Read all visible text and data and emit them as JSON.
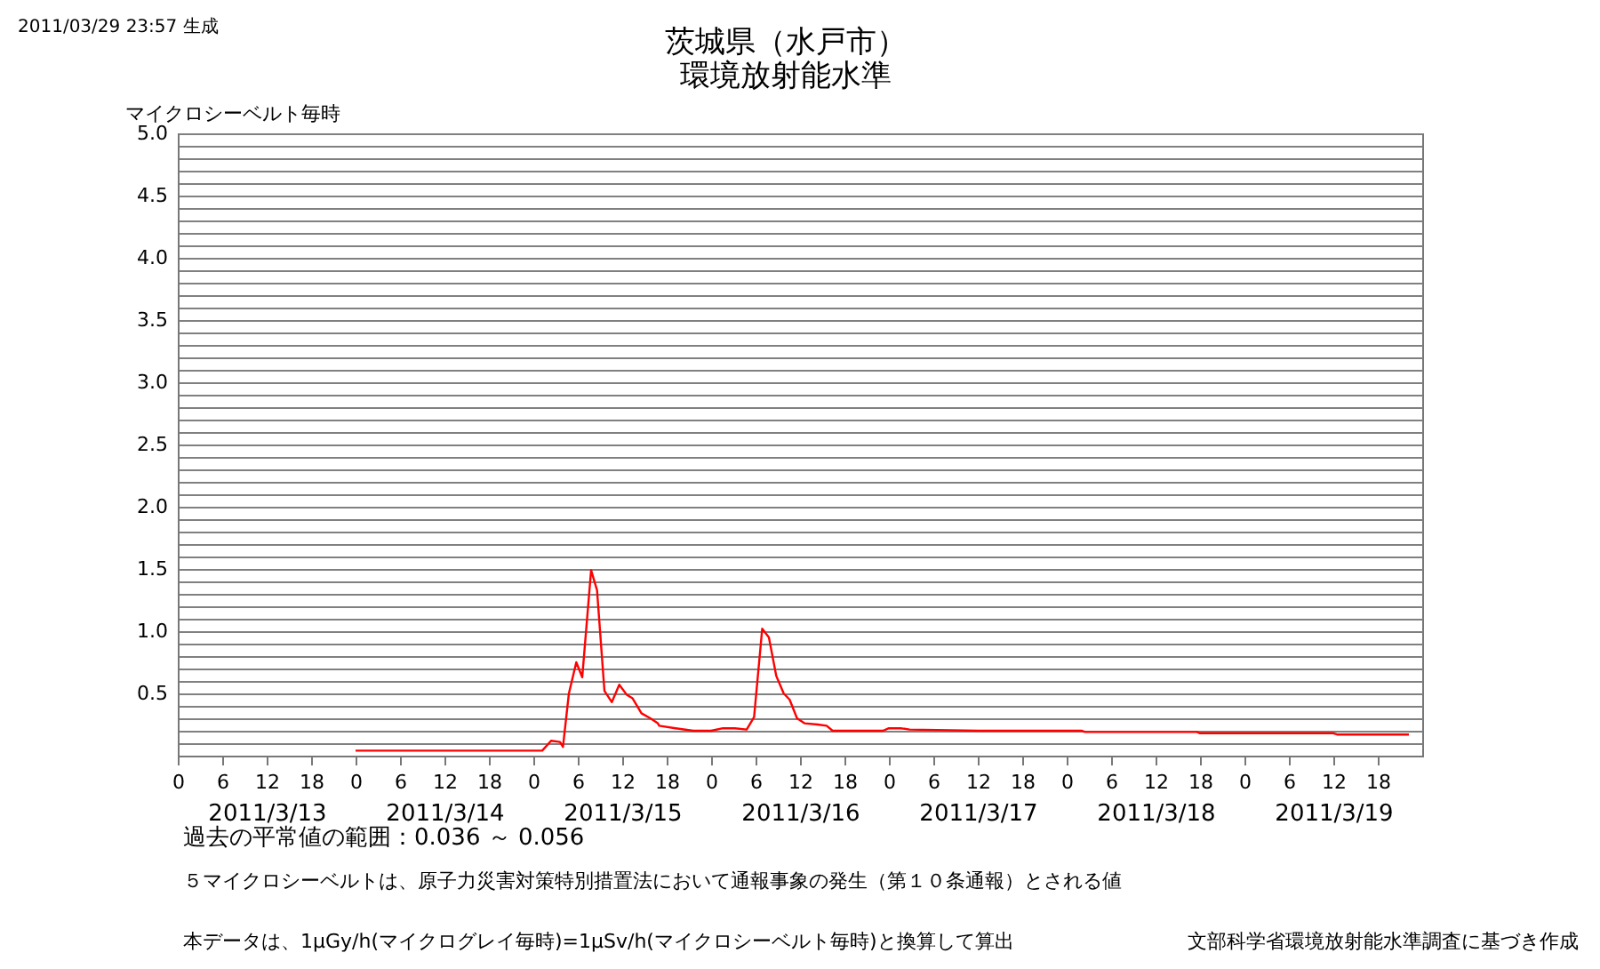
{
  "chart_data": {
    "type": "line",
    "title": "茨城県（水戸市）",
    "subtitle": "環境放射能水準",
    "ylabel": "マイクロシーベルト毎時",
    "annotations": [
      "2011/03/29 23:57 生成",
      "過去の平常値の範囲：0.036 ～ 0.056",
      "５マイクロシーベルトは、原子力災害対策特別措置法において通報事象の発生（第１０条通報）とされる値",
      "本データは、1μGy/h(マイクログレイ毎時)=1μSv/h(マイクロシーベルト毎時)と換算して算出",
      "文部科学省環境放射能水準調査に基づき作成"
    ],
    "x": [
      "2011-03-14T00:00",
      "2011-03-15T00:00",
      "2011-03-15T01:12",
      "2011-03-15T02:24",
      "2011-03-15T03:36",
      "2011-03-15T04:00",
      "2011-03-15T04:48",
      "2011-03-15T05:48",
      "2011-03-15T06:36",
      "2011-03-15T07:48",
      "2011-03-15T08:36",
      "2011-03-15T09:36",
      "2011-03-15T10:36",
      "2011-03-15T11:36",
      "2011-03-15T12:36",
      "2011-03-15T13:24",
      "2011-03-15T14:36",
      "2011-03-15T15:48",
      "2011-03-15T16:48",
      "2011-03-15T17:00",
      "2011-03-15T19:12",
      "2011-03-15T21:36",
      "2011-03-16T00:00",
      "2011-03-16T01:36",
      "2011-03-16T03:12",
      "2011-03-16T04:48",
      "2011-03-16T05:48",
      "2011-03-16T06:54",
      "2011-03-16T07:48",
      "2011-03-16T08:48",
      "2011-03-16T09:48",
      "2011-03-16T10:36",
      "2011-03-16T11:36",
      "2011-03-16T12:36",
      "2011-03-16T14:24",
      "2011-03-16T15:36",
      "2011-03-16T16:24",
      "2011-03-16T19:12",
      "2011-03-16T23:12",
      "2011-03-17T00:00",
      "2011-03-17T01:36",
      "2011-03-17T02:48",
      "2011-03-17T12:00",
      "2011-03-18T02:00",
      "2011-03-18T02:30",
      "2011-03-18T17:36",
      "2011-03-18T18:00",
      "2011-03-19T12:00",
      "2011-03-19T12:30",
      "2011-03-19T22:12"
    ],
    "series": [
      {
        "color": "#ff0000",
        "values": [
          0.04,
          0.04,
          0.04,
          0.12,
          0.11,
          0.07,
          0.5,
          0.75,
          0.63,
          1.49,
          1.33,
          0.52,
          0.43,
          0.57,
          0.49,
          0.46,
          0.34,
          0.3,
          0.26,
          0.24,
          0.22,
          0.2,
          0.2,
          0.22,
          0.22,
          0.21,
          0.31,
          1.02,
          0.95,
          0.64,
          0.5,
          0.45,
          0.3,
          0.26,
          0.25,
          0.24,
          0.2,
          0.2,
          0.2,
          0.22,
          0.22,
          0.21,
          0.2,
          0.2,
          0.19,
          0.19,
          0.18,
          0.18,
          0.17,
          0.17
        ]
      }
    ],
    "xlim": [
      "2011-03-13T00:00",
      "2011-03-20T00:00"
    ],
    "xticks": [
      {
        "value": "2011-03-13T00:00",
        "label": "0"
      },
      {
        "value": "2011-03-13T06:00",
        "label": "6"
      },
      {
        "value": "2011-03-13T12:00",
        "label": "12"
      },
      {
        "value": "2011-03-13T18:00",
        "label": "18"
      },
      {
        "value": "2011-03-14T00:00",
        "label": "0"
      },
      {
        "value": "2011-03-14T06:00",
        "label": "6"
      },
      {
        "value": "2011-03-14T12:00",
        "label": "12"
      },
      {
        "value": "2011-03-14T18:00",
        "label": "18"
      },
      {
        "value": "2011-03-15T00:00",
        "label": "0"
      },
      {
        "value": "2011-03-15T06:00",
        "label": "6"
      },
      {
        "value": "2011-03-15T12:00",
        "label": "12"
      },
      {
        "value": "2011-03-15T18:00",
        "label": "18"
      },
      {
        "value": "2011-03-16T00:00",
        "label": "0"
      },
      {
        "value": "2011-03-16T06:00",
        "label": "6"
      },
      {
        "value": "2011-03-16T12:00",
        "label": "12"
      },
      {
        "value": "2011-03-16T18:00",
        "label": "18"
      },
      {
        "value": "2011-03-17T00:00",
        "label": "0"
      },
      {
        "value": "2011-03-17T06:00",
        "label": "6"
      },
      {
        "value": "2011-03-17T12:00",
        "label": "12"
      },
      {
        "value": "2011-03-17T18:00",
        "label": "18"
      },
      {
        "value": "2011-03-18T00:00",
        "label": "0"
      },
      {
        "value": "2011-03-18T06:00",
        "label": "6"
      },
      {
        "value": "2011-03-18T12:00",
        "label": "12"
      },
      {
        "value": "2011-03-18T18:00",
        "label": "18"
      },
      {
        "value": "2011-03-19T00:00",
        "label": "0"
      },
      {
        "value": "2011-03-19T06:00",
        "label": "6"
      },
      {
        "value": "2011-03-19T12:00",
        "label": "12"
      },
      {
        "value": "2011-03-19T18:00",
        "label": "18"
      }
    ],
    "x2lim": [
      "2011-03-13T00:00",
      "2011-03-20T00:00"
    ],
    "x2ticks": [
      {
        "value": "2011-03-13T12:00",
        "label": "2011/3/13"
      },
      {
        "value": "2011-03-14T12:00",
        "label": "2011/3/14"
      },
      {
        "value": "2011-03-15T12:00",
        "label": "2011/3/15"
      },
      {
        "value": "2011-03-16T12:00",
        "label": "2011/3/16"
      },
      {
        "value": "2011-03-17T12:00",
        "label": "2011/3/17"
      },
      {
        "value": "2011-03-18T12:00",
        "label": "2011/3/18"
      },
      {
        "value": "2011-03-19T12:00",
        "label": "2011/3/19"
      }
    ],
    "ylim": [
      0,
      5
    ],
    "yticks": [
      {
        "value": 0.1,
        "label": null
      },
      {
        "value": 0.2,
        "label": null
      },
      {
        "value": 0.3,
        "label": null
      },
      {
        "value": 0.4,
        "label": null
      },
      {
        "value": 0.5,
        "label": "0.5"
      },
      {
        "value": 0.6,
        "label": null
      },
      {
        "value": 0.7,
        "label": null
      },
      {
        "value": 0.8,
        "label": null
      },
      {
        "value": 0.9,
        "label": null
      },
      {
        "value": 1,
        "label": "1.0"
      },
      {
        "value": 1.1,
        "label": null
      },
      {
        "value": 1.2,
        "label": null
      },
      {
        "value": 1.3,
        "label": null
      },
      {
        "value": 1.4,
        "label": null
      },
      {
        "value": 1.5,
        "label": "1.5"
      },
      {
        "value": 1.6,
        "label": null
      },
      {
        "value": 1.7,
        "label": null
      },
      {
        "value": 1.8,
        "label": null
      },
      {
        "value": 1.9,
        "label": null
      },
      {
        "value": 2,
        "label": "2.0"
      },
      {
        "value": 2.1,
        "label": null
      },
      {
        "value": 2.2,
        "label": null
      },
      {
        "value": 2.3,
        "label": null
      },
      {
        "value": 2.4,
        "label": null
      },
      {
        "value": 2.5,
        "label": "2.5"
      },
      {
        "value": 2.6,
        "label": null
      },
      {
        "value": 2.7,
        "label": null
      },
      {
        "value": 2.8,
        "label": null
      },
      {
        "value": 2.9,
        "label": null
      },
      {
        "value": 3,
        "label": "3.0"
      },
      {
        "value": 3.1,
        "label": null
      },
      {
        "value": 3.2,
        "label": null
      },
      {
        "value": 3.3,
        "label": null
      },
      {
        "value": 3.4,
        "label": null
      },
      {
        "value": 3.5,
        "label": "3.5"
      },
      {
        "value": 3.6,
        "label": null
      },
      {
        "value": 3.7,
        "label": null
      },
      {
        "value": 3.8,
        "label": null
      },
      {
        "value": 3.9,
        "label": null
      },
      {
        "value": 4,
        "label": "4.0"
      },
      {
        "value": 4.1,
        "label": null
      },
      {
        "value": 4.2,
        "label": null
      },
      {
        "value": 4.3,
        "label": null
      },
      {
        "value": 4.4,
        "label": null
      },
      {
        "value": 4.5,
        "label": "4.5"
      },
      {
        "value": 4.6,
        "label": null
      },
      {
        "value": 4.7,
        "label": null
      },
      {
        "value": 4.8,
        "label": null
      },
      {
        "value": 4.9,
        "label": null
      },
      {
        "value": 5,
        "label": "5.0"
      }
    ],
    "grid": "y"
  }
}
